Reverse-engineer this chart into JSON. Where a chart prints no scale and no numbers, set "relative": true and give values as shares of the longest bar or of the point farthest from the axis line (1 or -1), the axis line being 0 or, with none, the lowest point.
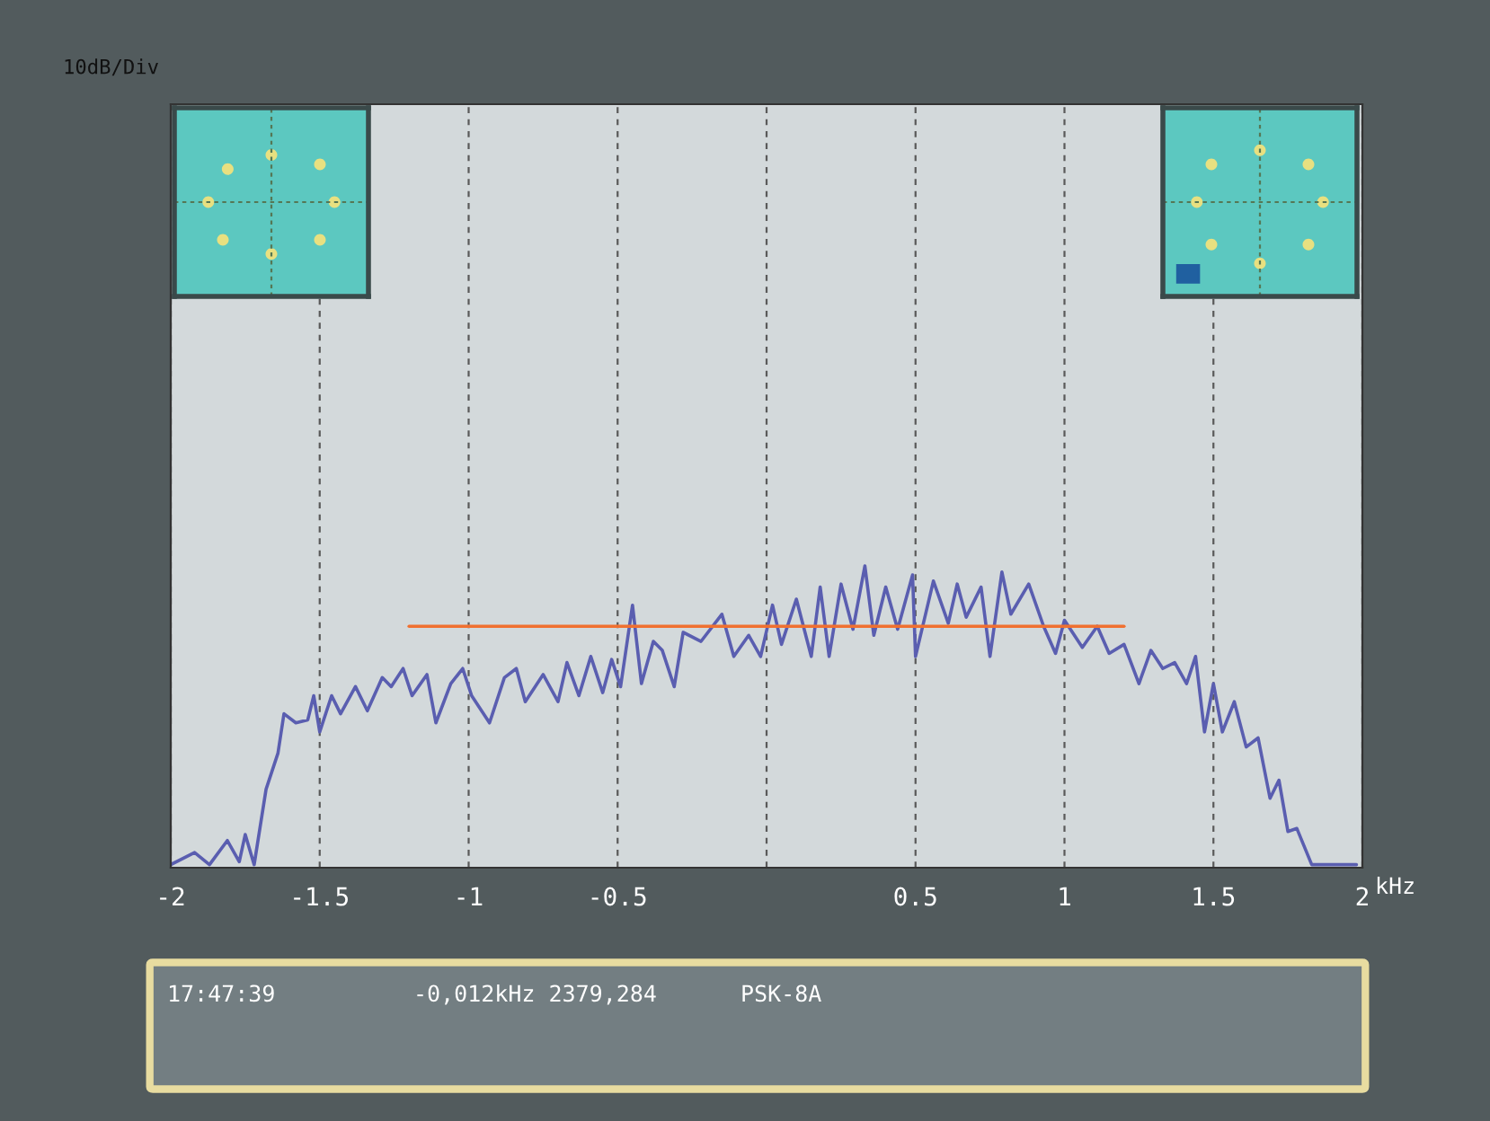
{
  "chart_data": {
    "type": "line",
    "relative": true,
    "xlabel": "kHz",
    "xlim": [
      -2,
      2
    ],
    "xticks": [
      -2,
      -1.5,
      -1,
      -0.5,
      {
        "value": 0,
        "label": null
      },
      0.5,
      1,
      1.5,
      2
    ],
    "grid": "x",
    "legend": false,
    "marker": "none",
    "line_style": "solid",
    "series": [
      {
        "color": "#5a5eb0",
        "x": [
          -2,
          -1.92,
          -1.87,
          -1.81,
          -1.77,
          -1.75,
          -1.72,
          -1.68,
          -1.64,
          -1.62,
          -1.58,
          -1.54,
          -1.52,
          -1.5,
          -1.46,
          -1.43,
          -1.38,
          -1.34,
          -1.29,
          -1.26,
          -1.22,
          -1.19,
          -1.14,
          -1.11,
          -1.06,
          -1.02,
          -0.99,
          -0.93,
          -0.88,
          -0.84,
          -0.81,
          -0.75,
          -0.7,
          -0.67,
          -0.63,
          -0.59,
          -0.55,
          -0.52,
          -0.49,
          -0.45,
          -0.42,
          -0.38,
          -0.35,
          -0.31,
          -0.28,
          -0.22,
          -0.15,
          -0.11,
          -0.06,
          -0.02,
          0.02,
          0.05,
          0.1,
          0.15,
          0.18,
          0.21,
          0.25,
          0.29,
          0.33,
          0.36,
          0.4,
          0.44,
          0.49,
          0.5,
          0.56,
          0.61,
          0.64,
          0.67,
          0.72,
          0.75,
          0.79,
          0.82,
          0.88,
          0.93,
          0.97,
          1.0,
          1.06,
          1.11,
          1.15,
          1.2,
          1.25,
          1.29,
          1.33,
          1.37,
          1.41,
          1.44,
          1.47,
          1.5,
          1.53,
          1.57,
          1.61,
          1.65,
          1.69,
          1.72,
          1.75,
          1.78,
          1.83,
          1.98
        ],
        "values": [
          0.01,
          0.05,
          0.01,
          0.09,
          0.02,
          0.11,
          0.01,
          0.26,
          0.38,
          0.51,
          0.48,
          0.49,
          0.57,
          0.45,
          0.57,
          0.51,
          0.6,
          0.52,
          0.63,
          0.6,
          0.66,
          0.57,
          0.64,
          0.48,
          0.61,
          0.66,
          0.57,
          0.48,
          0.63,
          0.66,
          0.55,
          0.64,
          0.55,
          0.68,
          0.57,
          0.7,
          0.58,
          0.69,
          0.6,
          0.87,
          0.61,
          0.75,
          0.72,
          0.6,
          0.78,
          0.75,
          0.84,
          0.7,
          0.77,
          0.7,
          0.87,
          0.74,
          0.89,
          0.7,
          0.93,
          0.7,
          0.94,
          0.79,
          1.0,
          0.77,
          0.93,
          0.79,
          0.97,
          0.7,
          0.95,
          0.81,
          0.94,
          0.83,
          0.93,
          0.7,
          0.98,
          0.84,
          0.94,
          0.8,
          0.71,
          0.82,
          0.73,
          0.8,
          0.71,
          0.74,
          0.61,
          0.72,
          0.66,
          0.68,
          0.61,
          0.7,
          0.45,
          0.61,
          0.45,
          0.55,
          0.4,
          0.43,
          0.23,
          0.29,
          0.12,
          0.13,
          0.01,
          0.01
        ]
      },
      {
        "color": "#f07030",
        "x": [
          -1.2,
          1.2
        ],
        "values": [
          0.8,
          0.8
        ]
      }
    ],
    "annotations": [
      "10dB/Div",
      "17:47:39",
      "-0,012kHz 2379,284",
      "PSK-8A"
    ]
  }
}
